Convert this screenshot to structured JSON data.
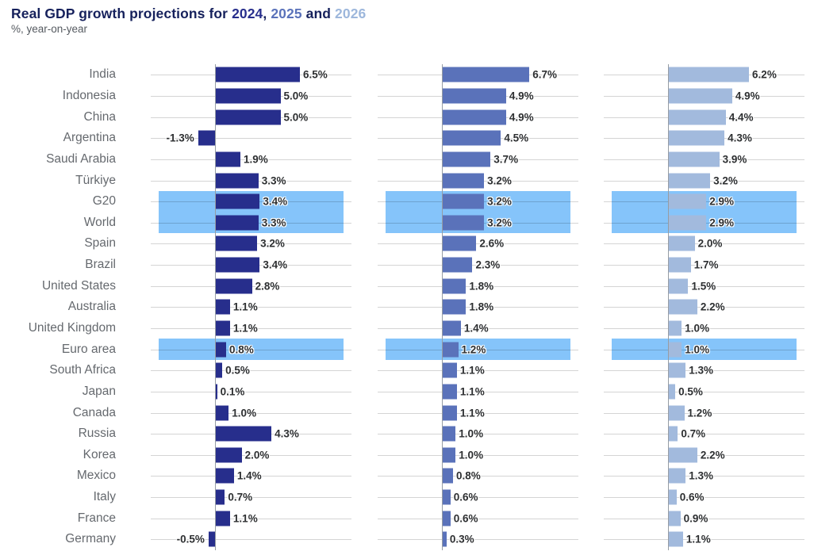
{
  "header": {
    "title_parts": [
      {
        "text": "Real GDP growth projections for ",
        "color": "#16215c"
      },
      {
        "text": "2024",
        "color": "#272e8c"
      },
      {
        "text": ", ",
        "color": "#16215c"
      },
      {
        "text": "2025",
        "color": "#5a72ba"
      },
      {
        "text": " and ",
        "color": "#16215c"
      },
      {
        "text": "2026",
        "color": "#9db7dc"
      }
    ],
    "subtitle": "%, year-on-year"
  },
  "chart_data": {
    "type": "bar",
    "orientation": "horizontal",
    "title": "Real GDP growth projections for 2024, 2025 and 2026",
    "subtitle": "%, year-on-year",
    "unit": "%",
    "value_label_format": "one_decimal_percent",
    "grid": true,
    "panel_xlim": [
      -4.4,
      9.9
    ],
    "categories": [
      "India",
      "Indonesia",
      "China",
      "Argentina",
      "Saudi Arabia",
      "Türkiye",
      "G20",
      "World",
      "Spain",
      "Brazil",
      "United States",
      "Australia",
      "United Kingdom",
      "Euro area",
      "South Africa",
      "Japan",
      "Canada",
      "Russia",
      "Korea",
      "Mexico",
      "Italy",
      "France",
      "Germany"
    ],
    "series": [
      {
        "name": "2024",
        "color": "#272e8c",
        "values": [
          6.5,
          5.0,
          5.0,
          -1.3,
          1.9,
          3.3,
          3.4,
          3.3,
          3.2,
          3.4,
          2.8,
          1.1,
          1.1,
          0.8,
          0.5,
          0.1,
          1.0,
          4.3,
          2.0,
          1.4,
          0.7,
          1.1,
          -0.5
        ]
      },
      {
        "name": "2025",
        "color": "#5a72ba",
        "values": [
          6.7,
          4.9,
          4.9,
          4.5,
          3.7,
          3.2,
          3.2,
          3.2,
          2.6,
          2.3,
          1.8,
          1.8,
          1.4,
          1.2,
          1.1,
          1.1,
          1.1,
          1.0,
          1.0,
          0.8,
          0.6,
          0.6,
          0.3
        ]
      },
      {
        "name": "2026",
        "color": "#a2badd",
        "values": [
          6.2,
          4.9,
          4.4,
          4.3,
          3.9,
          3.2,
          2.9,
          2.9,
          2.0,
          1.7,
          1.5,
          2.2,
          1.0,
          1.0,
          1.3,
          0.5,
          1.2,
          0.7,
          2.2,
          1.3,
          0.6,
          0.9,
          1.1
        ]
      }
    ],
    "highlighted_categories": [
      "G20",
      "World",
      "Euro area"
    ],
    "highlight_color": "#85c4fa"
  },
  "layout_hint_note": "three side-by-side bar panels, one per year series"
}
